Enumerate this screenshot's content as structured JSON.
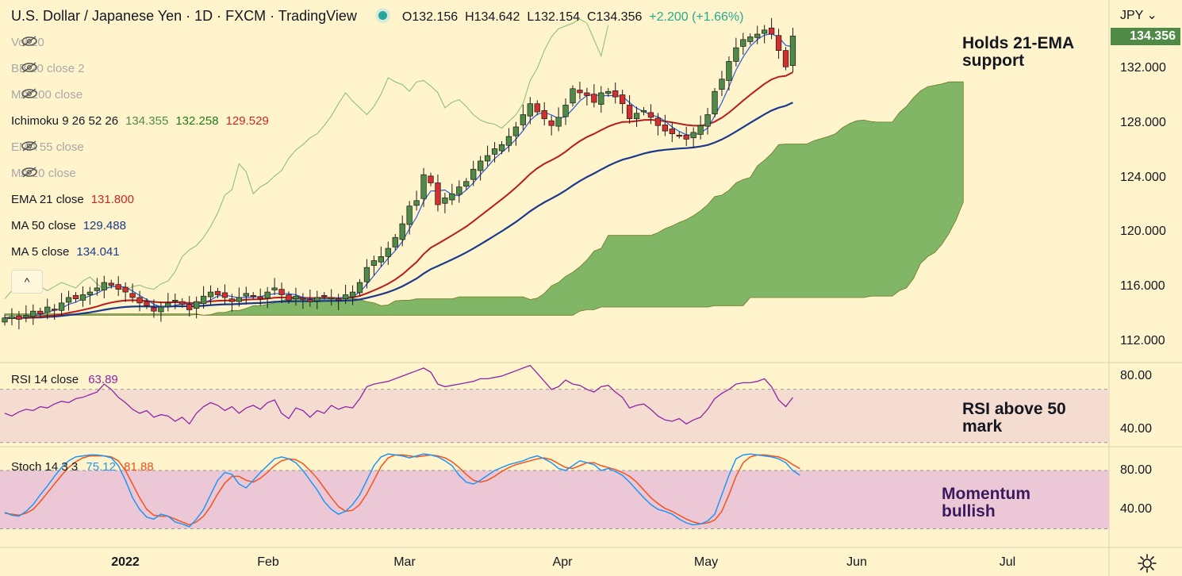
{
  "header": {
    "title": "U.S. Dollar / Japanese Yen · 1D · FXCM · TradingView",
    "open": "O132.156",
    "high": "H134.642",
    "low": "L132.154",
    "close": "C134.356",
    "change": "+2.200 (+1.66%)"
  },
  "currency": "JPY",
  "last_price": "134.356",
  "legend": [
    {
      "label": "Vol 20",
      "hidden": true
    },
    {
      "label": "BB 20 close 2",
      "hidden": true
    },
    {
      "label": "MA 200 close",
      "hidden": true
    },
    {
      "label": "Ichimoku 9 26 52 26",
      "hidden": false,
      "values": [
        "134.355",
        "132.258",
        "129.529"
      ],
      "colors": [
        "#4f8a47",
        "#1f7a1f",
        "#c62828"
      ]
    },
    {
      "label": "EMA 55 close",
      "hidden": true
    },
    {
      "label": "MA 20 close",
      "hidden": true
    },
    {
      "label": "EMA 21 close",
      "hidden": false,
      "values": [
        "131.800"
      ],
      "colors": [
        "#c62828"
      ]
    },
    {
      "label": "MA 50 close",
      "hidden": false,
      "values": [
        "129.488"
      ],
      "colors": [
        "#1a3a8c"
      ]
    },
    {
      "label": "MA 5 close",
      "hidden": false,
      "values": [
        "134.041"
      ],
      "colors": [
        "#1a3a8c"
      ]
    }
  ],
  "collapse_glyph": "^",
  "price_axis": [
    "132.000",
    "128.000",
    "124.000",
    "120.000",
    "116.000",
    "112.000"
  ],
  "rsi": {
    "label": "RSI 14 close",
    "value": "63.89",
    "axis": [
      "80.00",
      "40.00"
    ]
  },
  "stoch": {
    "label": "Stoch 14 3 3",
    "k": "75.12",
    "d": "81.88",
    "axis": [
      "80.00",
      "40.00"
    ]
  },
  "time_axis": [
    "2022",
    "Feb",
    "Mar",
    "Apr",
    "May",
    "Jun",
    "Jul"
  ],
  "annotations": {
    "price": "Holds 21-EMA\nsupport",
    "rsi": "RSI above 50\nmark",
    "stoch": "Momentum\nbullish"
  },
  "colors": {
    "background": "#fff4cc",
    "up": "#4f8a47",
    "down": "#d32f2f",
    "ema21": "#b71c1c",
    "ma50": "#1a3a8c",
    "ma5": "#2a5bd7",
    "cloud": "#6aaa52",
    "chikou": "#8fbf7f",
    "rsi": "#8e24aa",
    "stoch_k": "#2196f3",
    "stoch_d": "#f4511e"
  },
  "chart_data": [
    {
      "type": "candlestick",
      "name_shown": "U.S. Dollar / Japanese Yen",
      "interval": "1D",
      "ylim": [
        111,
        136.5
      ],
      "x_ticks": [
        "2022",
        "Feb",
        "Mar",
        "Apr",
        "May",
        "Jun",
        "Jul"
      ],
      "close": [
        113.7,
        113.8,
        113.6,
        113.9,
        114.2,
        114.0,
        114.5,
        114.3,
        114.8,
        115.2,
        115.1,
        115.4,
        115.6,
        115.9,
        116.3,
        116.1,
        115.8,
        115.6,
        115.2,
        114.8,
        114.6,
        114.2,
        114.5,
        114.8,
        115.0,
        114.7,
        114.3,
        114.9,
        115.3,
        115.6,
        115.4,
        115.2,
        114.9,
        115.2,
        115.5,
        115.3,
        115.1,
        115.6,
        115.9,
        115.4,
        115.0,
        115.3,
        115.1,
        114.9,
        115.2,
        115.3,
        115.1,
        115.0,
        115.4,
        115.6,
        116.3,
        117.4,
        117.9,
        118.2,
        118.8,
        119.6,
        120.6,
        121.9,
        122.3,
        124.2,
        123.6,
        122.0,
        122.5,
        122.8,
        123.3,
        123.7,
        124.6,
        125.2,
        125.6,
        126.1,
        126.4,
        127.0,
        127.7,
        128.6,
        129.4,
        128.8,
        128.3,
        127.8,
        128.4,
        129.3,
        130.5,
        130.2,
        130.0,
        129.5,
        130.2,
        130.3,
        129.9,
        129.4,
        128.3,
        128.7,
        128.9,
        128.4,
        127.8,
        127.4,
        127.2,
        127.1,
        126.8,
        127.3,
        127.8,
        128.6,
        130.3,
        131.2,
        132.5,
        133.5,
        134.1,
        134.3,
        134.5,
        134.8,
        134.5,
        133.3,
        132.1,
        134.36
      ],
      "ema21_last": 131.8,
      "ma50_last": 129.488,
      "ma5_last": 134.041
    },
    {
      "type": "line",
      "name_shown": "RSI 14 close",
      "ylim": [
        20,
        95
      ],
      "bands": [
        30,
        70
      ],
      "values": [
        52,
        50,
        53,
        55,
        54,
        57,
        56,
        59,
        61,
        60,
        63,
        64,
        66,
        68,
        74,
        70,
        64,
        60,
        55,
        52,
        54,
        49,
        51,
        50,
        46,
        49,
        44,
        52,
        57,
        60,
        58,
        54,
        57,
        52,
        56,
        58,
        55,
        60,
        62,
        52,
        48,
        56,
        54,
        49,
        54,
        52,
        58,
        55,
        57,
        56,
        63,
        72,
        74,
        75,
        76,
        78,
        80,
        82,
        84,
        86,
        83,
        74,
        72,
        73,
        74,
        75,
        76,
        78,
        78,
        79,
        80,
        82,
        84,
        86,
        88,
        82,
        76,
        70,
        72,
        77,
        74,
        73,
        70,
        68,
        72,
        73,
        68,
        64,
        56,
        58,
        59,
        55,
        50,
        47,
        46,
        48,
        44,
        47,
        49,
        55,
        63,
        67,
        70,
        74,
        75,
        75,
        76,
        78,
        72,
        62,
        57,
        63.89
      ]
    },
    {
      "type": "line",
      "name_shown": "Stoch 14 3 3",
      "ylim": [
        0,
        100
      ],
      "bands": [
        20,
        80
      ],
      "series": [
        {
          "name": "%K",
          "values": [
            37,
            34,
            33,
            38,
            45,
            55,
            64,
            74,
            83,
            90,
            94,
            95,
            96,
            96,
            95,
            93,
            85,
            70,
            52,
            40,
            32,
            30,
            35,
            33,
            27,
            25,
            22,
            30,
            40,
            55,
            70,
            78,
            76,
            66,
            62,
            70,
            78,
            85,
            92,
            94,
            92,
            88,
            80,
            70,
            60,
            48,
            40,
            35,
            38,
            45,
            55,
            70,
            85,
            94,
            97,
            96,
            95,
            93,
            95,
            97,
            96,
            94,
            90,
            85,
            75,
            68,
            66,
            70,
            75,
            80,
            83,
            86,
            88,
            90,
            93,
            95,
            92,
            88,
            82,
            80,
            85,
            90,
            88,
            86,
            80,
            82,
            79,
            75,
            68,
            60,
            52,
            45,
            40,
            38,
            35,
            30,
            26,
            24,
            25,
            28,
            35,
            55,
            75,
            92,
            96,
            97,
            96,
            95,
            94,
            92,
            88,
            80,
            75.12
          ]
        },
        {
          "name": "%D",
          "values": [
            36,
            35,
            34,
            36,
            40,
            48,
            57,
            66,
            75,
            83,
            89,
            93,
            95,
            95,
            95,
            94,
            90,
            80,
            66,
            52,
            40,
            34,
            33,
            33,
            30,
            27,
            24,
            27,
            33,
            43,
            56,
            67,
            74,
            74,
            70,
            68,
            72,
            78,
            85,
            90,
            92,
            91,
            87,
            80,
            72,
            62,
            52,
            43,
            38,
            39,
            45,
            56,
            70,
            84,
            93,
            96,
            96,
            95,
            94,
            95,
            96,
            95,
            93,
            89,
            83,
            76,
            70,
            68,
            70,
            74,
            79,
            83,
            86,
            88,
            90,
            92,
            93,
            91,
            87,
            83,
            82,
            85,
            88,
            88,
            85,
            83,
            81,
            78,
            74,
            68,
            60,
            52,
            46,
            41,
            38,
            34,
            30,
            27,
            25,
            26,
            29,
            38,
            55,
            74,
            88,
            94,
            96,
            96,
            95,
            94,
            91,
            86,
            81.88
          ]
        }
      ]
    }
  ]
}
